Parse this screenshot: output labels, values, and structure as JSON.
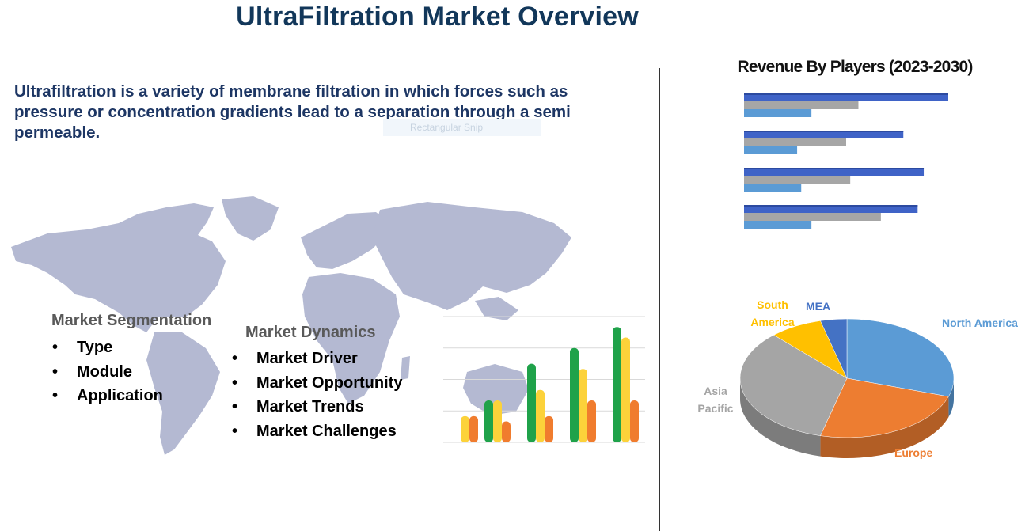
{
  "title": "UltraFiltration Market Overview",
  "intro": "Ultrafiltration is a variety of membrane filtration  in which forces such as pressure or concentration gradients lead to a separation through a semi permeable.",
  "ghost_label": "Rectangular Snip",
  "segmentation": {
    "heading": "Market Segmentation",
    "items": [
      "Type",
      "Module",
      "Application"
    ]
  },
  "dynamics": {
    "heading": "Market Dynamics",
    "items": [
      "Market Driver",
      "Market Opportunity",
      "Market Trends",
      "Market Challenges"
    ]
  },
  "colors": {
    "title": "#12375a",
    "map": "#b4b9d2",
    "green": "#1fa24a",
    "yellow": "#fcd23a",
    "orange": "#f07c2e",
    "bar_blue": "#3f63c7",
    "bar_grey": "#a6a6a6",
    "bar_light": "#5b9bd5"
  },
  "chart_data": [
    {
      "type": "bar",
      "title": "Revenue By Players (2023-2030)",
      "orientation": "horizontal",
      "categories": [
        "",
        "",
        "",
        ""
      ],
      "series": [
        {
          "color": "#3f63c7",
          "values": [
            100,
            78,
            88,
            85
          ]
        },
        {
          "color": "#a6a6a6",
          "values": [
            56,
            50,
            52,
            67
          ]
        },
        {
          "color": "#5b9bd5",
          "values": [
            33,
            26,
            28,
            33
          ]
        }
      ]
    },
    {
      "type": "bar",
      "categories": [
        "",
        "",
        "",
        "",
        ""
      ],
      "series": [
        {
          "color": "#1fa24a",
          "values": [
            0,
            16,
            30,
            36,
            44
          ]
        },
        {
          "color": "#fcd23a",
          "values": [
            10,
            16,
            20,
            28,
            40
          ]
        },
        {
          "color": "#f07c2e",
          "values": [
            10,
            8,
            10,
            16,
            16
          ]
        }
      ],
      "ylim": [
        0,
        48
      ],
      "grid": true
    },
    {
      "type": "pie",
      "labels": [
        "North America",
        "Europe",
        "Asia Pacific",
        "South America",
        "MEA"
      ],
      "values": [
        30,
        24,
        34,
        8,
        4
      ],
      "colors": [
        "#5b9bd5",
        "#ed7d31",
        "#a5a5a5",
        "#ffc000",
        "#4472c4"
      ]
    }
  ]
}
